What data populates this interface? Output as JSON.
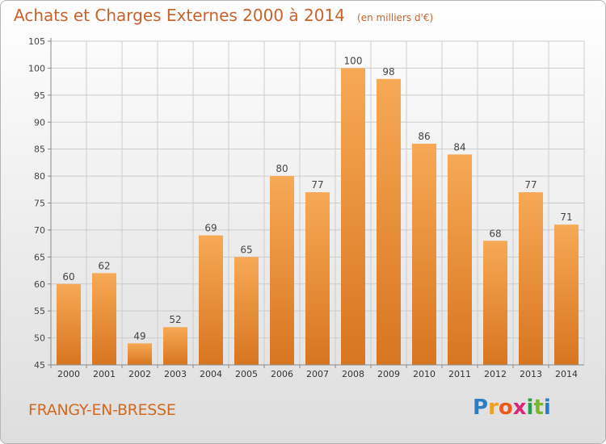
{
  "header": {
    "title": "Achats et Charges Externes 2000 à 2014",
    "unit": "(en milliers d'€)"
  },
  "footer": {
    "commune": "FRANGY-EN-BRESSE",
    "logo": "Proxiti"
  },
  "colors": {
    "bar_light": "#f7a955",
    "bar_dark": "#d87520",
    "title": "#c8622c",
    "grid": "#cccccc"
  },
  "chart_data": {
    "type": "bar",
    "title": "Achats et Charges Externes 2000 à 2014",
    "subtitle": "(en milliers d'€)",
    "categories": [
      "2000",
      "2001",
      "2002",
      "2003",
      "2004",
      "2005",
      "2006",
      "2007",
      "2008",
      "2009",
      "2010",
      "2011",
      "2012",
      "2013",
      "2014"
    ],
    "values": [
      60,
      62,
      49,
      52,
      69,
      65,
      80,
      77,
      100,
      98,
      86,
      84,
      68,
      77,
      71
    ],
    "ylim": [
      45,
      105
    ],
    "yticks": [
      45,
      50,
      55,
      60,
      65,
      70,
      75,
      80,
      85,
      90,
      95,
      100,
      105
    ],
    "grid": true,
    "data_labels": true
  }
}
